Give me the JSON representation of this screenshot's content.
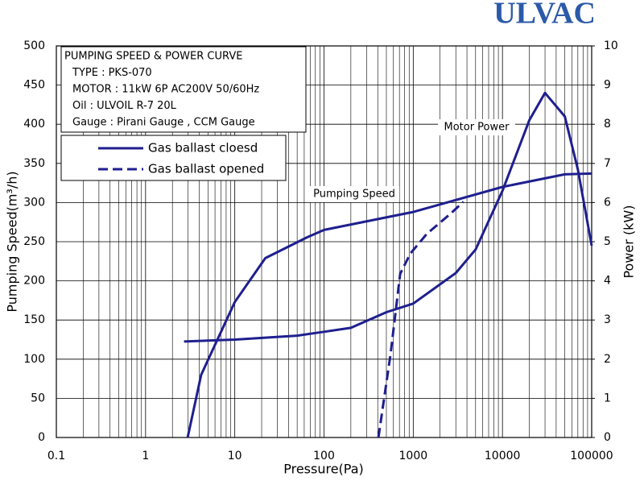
{
  "chart_data": {
    "type": "line",
    "brand": "ULVAC",
    "info_lines": [
      "PUMPING SPEED & POWER CURVE",
      "TYPE : PKS-070",
      "MOTOR : 11kW 6P AC200V 50/60Hz",
      "Oil : ULVOIL R-7 20L",
      "Gauge : Pirani Gauge , CCM Gauge"
    ],
    "x_label": "Pressure(Pa)",
    "y_label": "Pumping Speed(m³/h)",
    "y2_label": "Power (kW)",
    "annotations": [
      "Pumping Speed"
    ],
    "log_x": true,
    "grid": true,
    "legend_position": "upper left",
    "xlim": [
      0.1,
      100000
    ],
    "xticks": [
      0.1,
      1,
      10,
      100,
      1000,
      10000,
      100000
    ],
    "ylim": [
      0,
      500
    ],
    "yticks": [
      0,
      50,
      100,
      150,
      200,
      250,
      300,
      350,
      400,
      450,
      500
    ],
    "y2lim": [
      0,
      10
    ],
    "y2ticks": [
      0,
      1,
      2,
      3,
      4,
      5,
      6,
      7,
      8,
      9,
      10
    ],
    "series": [
      {
        "name": "Gas ballast cloesd",
        "color": "#1f1f8f",
        "dash": false,
        "in_legend": true,
        "x": [
          2.96,
          4.2,
          10,
          22,
          63,
          100,
          1000,
          10000,
          50000,
          100000
        ],
        "values": [
          0,
          80,
          173,
          229,
          255,
          265,
          288,
          320,
          336,
          337
        ]
      },
      {
        "name": "Gas ballast opened",
        "color": "#1f1f8f",
        "dash": true,
        "in_legend": true,
        "x": [
          407,
          556,
          714,
          930,
          1420,
          2630,
          3650
        ],
        "values": [
          0,
          106,
          209,
          235,
          260,
          286,
          301
        ]
      },
      {
        "name": "Motor Power",
        "color": "#1f1f8f",
        "dash": false,
        "in_legend": false,
        "axis": "y2",
        "x": [
          2.7,
          10,
          50,
          100,
          200,
          500,
          1000,
          3000,
          5000,
          10000,
          20000,
          30000,
          50000,
          70000,
          100000
        ],
        "values": [
          2.45,
          2.5,
          2.6,
          2.7,
          2.8,
          3.2,
          3.42,
          4.2,
          4.8,
          6.3,
          8.1,
          8.8,
          8.2,
          6.85,
          4.9
        ]
      }
    ]
  }
}
